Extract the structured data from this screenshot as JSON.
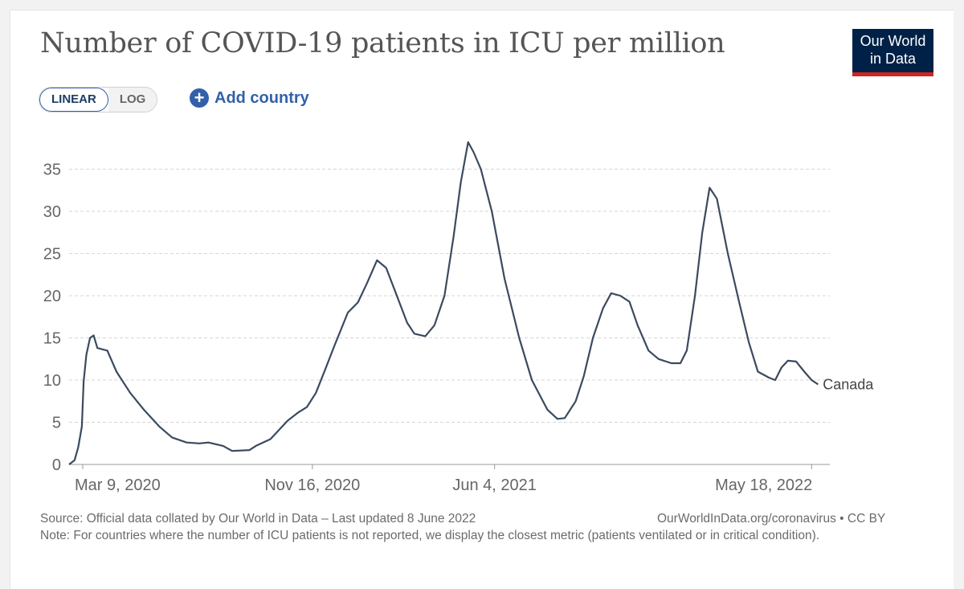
{
  "header": {
    "title": "Number of COVID-19 patients in ICU per million",
    "logo_line1": "Our World",
    "logo_line2": "in Data",
    "logo_colors": {
      "background": "#002147",
      "stripe": "#ce261e"
    }
  },
  "controls": {
    "scale_options": [
      "LINEAR",
      "LOG"
    ],
    "scale_selected": "LINEAR",
    "add_country_label": "Add country",
    "add_country_icon": "plus-circle-icon",
    "accent_color": "#3360a9"
  },
  "chart_data": {
    "type": "line",
    "title": "Number of COVID-19 patients in ICU per million",
    "xlabel": "",
    "ylabel": "",
    "yscale": "linear",
    "ylim": [
      0,
      38.5
    ],
    "yticks": [
      0,
      5,
      10,
      15,
      20,
      25,
      30,
      35
    ],
    "xlim": [
      "2020-02-23",
      "2022-06-07"
    ],
    "xticks": [
      {
        "date": "2020-03-09",
        "label": "Mar 9, 2020"
      },
      {
        "date": "2020-11-16",
        "label": "Nov 16, 2020"
      },
      {
        "date": "2021-06-04",
        "label": "Jun 4, 2021"
      },
      {
        "date": "2022-05-18",
        "label": "May 18, 2022"
      }
    ],
    "grid": "horizontal dashed",
    "line_color": "#3b4a5e",
    "series": [
      {
        "name": "Canada",
        "points": [
          [
            "2020-02-23",
            0.0
          ],
          [
            "2020-02-29",
            0.5
          ],
          [
            "2020-03-04",
            2.0
          ],
          [
            "2020-03-08",
            4.5
          ],
          [
            "2020-03-10",
            9.8
          ],
          [
            "2020-03-13",
            13.0
          ],
          [
            "2020-03-17",
            15.0
          ],
          [
            "2020-03-21",
            15.3
          ],
          [
            "2020-03-25",
            13.8
          ],
          [
            "2020-04-05",
            13.5
          ],
          [
            "2020-04-15",
            11.0
          ],
          [
            "2020-04-30",
            8.5
          ],
          [
            "2020-05-15",
            6.5
          ],
          [
            "2020-06-01",
            4.5
          ],
          [
            "2020-06-15",
            3.2
          ],
          [
            "2020-07-01",
            2.6
          ],
          [
            "2020-07-15",
            2.5
          ],
          [
            "2020-07-25",
            2.6
          ],
          [
            "2020-08-10",
            2.2
          ],
          [
            "2020-08-20",
            1.6
          ],
          [
            "2020-09-08",
            1.7
          ],
          [
            "2020-09-15",
            2.2
          ],
          [
            "2020-10-01",
            3.0
          ],
          [
            "2020-10-20",
            5.2
          ],
          [
            "2020-11-01",
            6.2
          ],
          [
            "2020-11-10",
            6.8
          ],
          [
            "2020-11-20",
            8.5
          ],
          [
            "2020-12-01",
            11.5
          ],
          [
            "2020-12-10",
            14.0
          ],
          [
            "2020-12-25",
            18.0
          ],
          [
            "2021-01-05",
            19.2
          ],
          [
            "2021-01-15",
            21.5
          ],
          [
            "2021-01-26",
            24.2
          ],
          [
            "2021-02-05",
            23.3
          ],
          [
            "2021-02-15",
            20.5
          ],
          [
            "2021-02-28",
            16.8
          ],
          [
            "2021-03-08",
            15.5
          ],
          [
            "2021-03-20",
            15.2
          ],
          [
            "2021-03-30",
            16.5
          ],
          [
            "2021-04-10",
            20.0
          ],
          [
            "2021-04-20",
            27.0
          ],
          [
            "2021-04-28",
            33.5
          ],
          [
            "2021-05-06",
            38.2
          ],
          [
            "2021-05-12",
            37.0
          ],
          [
            "2021-05-20",
            35.0
          ],
          [
            "2021-06-01",
            30.0
          ],
          [
            "2021-06-15",
            22.0
          ],
          [
            "2021-07-01",
            15.0
          ],
          [
            "2021-07-15",
            10.0
          ],
          [
            "2021-08-01",
            6.5
          ],
          [
            "2021-08-12",
            5.4
          ],
          [
            "2021-08-20",
            5.5
          ],
          [
            "2021-09-01",
            7.5
          ],
          [
            "2021-09-10",
            10.5
          ],
          [
            "2021-09-20",
            15.0
          ],
          [
            "2021-10-01",
            18.5
          ],
          [
            "2021-10-10",
            20.3
          ],
          [
            "2021-10-20",
            20.0
          ],
          [
            "2021-10-30",
            19.3
          ],
          [
            "2021-11-08",
            16.5
          ],
          [
            "2021-11-20",
            13.5
          ],
          [
            "2021-12-01",
            12.5
          ],
          [
            "2021-12-15",
            12.0
          ],
          [
            "2021-12-25",
            12.0
          ],
          [
            "2022-01-01",
            13.5
          ],
          [
            "2022-01-10",
            20.0
          ],
          [
            "2022-01-18",
            27.5
          ],
          [
            "2022-01-26",
            32.8
          ],
          [
            "2022-02-03",
            31.5
          ],
          [
            "2022-02-15",
            25.0
          ],
          [
            "2022-02-28",
            19.0
          ],
          [
            "2022-03-10",
            14.5
          ],
          [
            "2022-03-20",
            11.0
          ],
          [
            "2022-04-01",
            10.3
          ],
          [
            "2022-04-08",
            10.0
          ],
          [
            "2022-04-15",
            11.5
          ],
          [
            "2022-04-22",
            12.3
          ],
          [
            "2022-05-01",
            12.2
          ],
          [
            "2022-05-10",
            11.0
          ],
          [
            "2022-05-18",
            10.0
          ],
          [
            "2022-05-25",
            9.5
          ]
        ]
      }
    ]
  },
  "footer": {
    "source": "Source: Official data collated by Our World in Data – Last updated 8 June 2022",
    "link": "OurWorldInData.org/coronavirus • CC BY",
    "note": "Note: For countries where the number of ICU patients is not reported, we display the closest metric (patients ventilated or in critical condition)."
  }
}
